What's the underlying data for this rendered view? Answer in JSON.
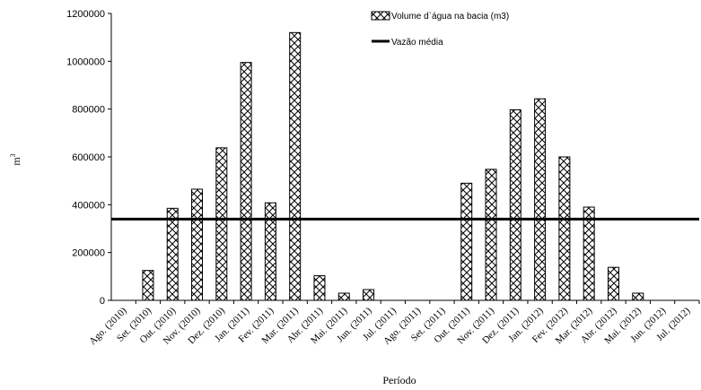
{
  "chart_data": {
    "type": "bar",
    "xlabel": "Período",
    "ylabel": "m",
    "ylabel_superscript": "3",
    "ylim": [
      0,
      1200000
    ],
    "yticks": [
      0,
      200000,
      400000,
      600000,
      800000,
      1000000,
      1200000
    ],
    "categories": [
      "Ago. (2010)",
      "Set. (2010)",
      "Out. (2010)",
      "Nov. (2010)",
      "Dez. (2010)",
      "Jan. (2011)",
      "Fev. (2011)",
      "Mar. (2011)",
      "Abr. (2011)",
      "Mai. (2011)",
      "Jun. (2011)",
      "Jul. (2011)",
      "Ago. (2011)",
      "Set. (2011)",
      "Out. (2011)",
      "Nov. (2011)",
      "Dez. (2011)",
      "Jan. (2012)",
      "Fev. (2012)",
      "Mar. (2012)",
      "Abr. (2012)",
      "Mai. (2012)",
      "Jun. (2012)",
      "Jul. (2012)"
    ],
    "series": [
      {
        "name": "Volume d`água na bacia (m3)",
        "type": "bar",
        "pattern": "diagonal-crosshatch",
        "values": [
          0,
          125000,
          385000,
          465000,
          638000,
          995000,
          408000,
          1120000,
          103000,
          30000,
          45000,
          0,
          0,
          0,
          490000,
          548000,
          797000,
          843000,
          600000,
          390000,
          138000,
          30000,
          0,
          0
        ]
      },
      {
        "name": "Vazão média",
        "type": "line",
        "value": 340000
      }
    ],
    "legend_position": "top-right",
    "grid": false
  }
}
